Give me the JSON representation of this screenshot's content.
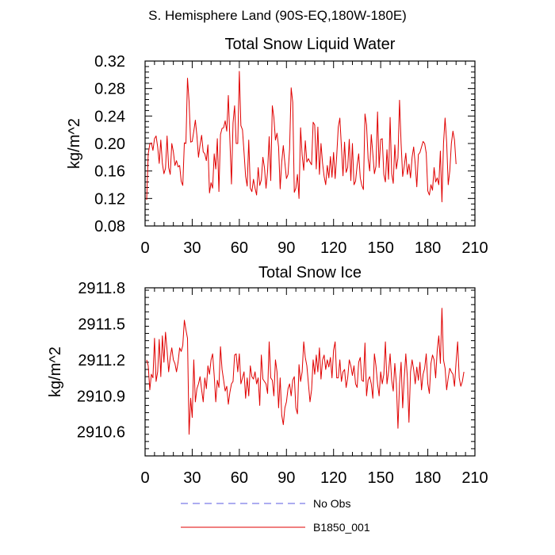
{
  "suptitle": "S. Hemisphere Land (90S-EQ,180W-180E)",
  "legend": [
    {
      "label": "No Obs",
      "style": "dashed",
      "color": "#5a5ae0"
    },
    {
      "label": "B1850_001",
      "style": "solid",
      "color": "#e00000"
    }
  ],
  "chart_data": [
    {
      "type": "line",
      "title": "Total Snow Liquid Water",
      "xlabel": "",
      "ylabel": "kg/m^2",
      "xlim": [
        0,
        210
      ],
      "ylim": [
        0.08,
        0.32
      ],
      "xticks": [
        "0",
        "30",
        "60",
        "90",
        "120",
        "150",
        "180",
        "210"
      ],
      "xtick_values": [
        0,
        30,
        60,
        90,
        120,
        150,
        180,
        210
      ],
      "yticks": [
        "0.08",
        "0.12",
        "0.16",
        "0.20",
        "0.24",
        "0.28",
        "0.32"
      ],
      "ytick_values": [
        0.08,
        0.12,
        0.16,
        0.2,
        0.24,
        0.28,
        0.32
      ],
      "series": [
        {
          "name": "B1850_001",
          "color": "#e00000",
          "values": [
            0.118,
            0.185,
            0.199,
            0.201,
            0.19,
            0.207,
            0.211,
            0.195,
            0.171,
            0.205,
            0.171,
            0.156,
            0.164,
            0.211,
            0.165,
            0.155,
            0.2,
            0.188,
            0.168,
            0.175,
            0.166,
            0.168,
            0.145,
            0.139,
            0.201,
            0.2,
            0.295,
            0.261,
            0.202,
            0.203,
            0.218,
            0.234,
            0.211,
            0.18,
            0.198,
            0.212,
            0.188,
            0.185,
            0.175,
            0.198,
            0.128,
            0.143,
            0.135,
            0.185,
            0.163,
            0.207,
            0.13,
            0.213,
            0.222,
            0.223,
            0.233,
            0.218,
            0.27,
            0.205,
            0.141,
            0.23,
            0.255,
            0.2,
            0.2,
            0.305,
            0.226,
            0.22,
            0.187,
            0.152,
            0.138,
            0.205,
            0.135,
            0.13,
            0.148,
            0.135,
            0.125,
            0.165,
            0.139,
            0.147,
            0.18,
            0.165,
            0.135,
            0.16,
            0.21,
            0.146,
            0.255,
            0.238,
            0.205,
            0.215,
            0.195,
            0.134,
            0.173,
            0.197,
            0.172,
            0.149,
            0.155,
            0.192,
            0.281,
            0.26,
            0.129,
            0.135,
            0.155,
            0.12,
            0.223,
            0.183,
            0.161,
            0.204,
            0.173,
            0.178,
            0.173,
            0.169,
            0.231,
            0.227,
            0.163,
            0.224,
            0.155,
            0.2,
            0.171,
            0.152,
            0.14,
            0.168,
            0.15,
            0.181,
            0.151,
            0.187,
            0.149,
            0.182,
            0.224,
            0.237,
            0.195,
            0.153,
            0.202,
            0.158,
            0.165,
            0.206,
            0.146,
            0.2,
            0.14,
            0.145,
            0.168,
            0.185,
            0.15,
            0.139,
            0.133,
            0.243,
            0.227,
            0.178,
            0.16,
            0.213,
            0.185,
            0.156,
            0.167,
            0.246,
            0.165,
            0.206,
            0.207,
            0.155,
            0.144,
            0.191,
            0.148,
            0.238,
            0.156,
            0.142,
            0.198,
            0.163,
            0.179,
            0.263,
            0.2,
            0.152,
            0.167,
            0.186,
            0.155,
            0.17,
            0.15,
            0.18,
            0.195,
            0.17,
            0.137,
            0.184,
            0.187,
            0.195,
            0.203,
            0.2,
            0.186,
            0.131,
            0.125,
            0.14,
            0.132,
            0.165,
            0.144,
            0.15,
            0.14,
            0.189,
            0.115,
            0.2,
            0.237,
            0.202,
            0.14,
            0.16,
            0.2,
            0.218,
            0.205,
            0.17
          ]
        }
      ]
    },
    {
      "type": "line",
      "title": "Total Snow Ice",
      "xlabel": "",
      "ylabel": "kg/m^2",
      "xlim": [
        0,
        210
      ],
      "ylim": [
        2910.4,
        2911.8
      ],
      "xticks": [
        "0",
        "30",
        "60",
        "90",
        "120",
        "150",
        "180",
        "210"
      ],
      "xtick_values": [
        0,
        30,
        60,
        90,
        120,
        150,
        180,
        210
      ],
      "yticks": [
        "2910.6",
        "2910.9",
        "2911.2",
        "2911.5",
        "2911.8"
      ],
      "ytick_values": [
        2910.6,
        2910.9,
        2911.2,
        2911.5,
        2911.8
      ],
      "series": [
        {
          "name": "B1850_001",
          "color": "#e00000",
          "values": [
            2911.2,
            2911.15,
            2910.95,
            2911.08,
            2911.05,
            2911.38,
            2911.02,
            2911.1,
            2911.37,
            2911.06,
            2911.4,
            2911.18,
            2911.43,
            2911.28,
            2911.1,
            2911.22,
            2911.3,
            2911.2,
            2911.17,
            2911.1,
            2911.18,
            2911.3,
            2911.27,
            2911.32,
            2911.53,
            2911.45,
            2911.38,
            2910.58,
            2910.88,
            2910.72,
            2911.2,
            2910.85,
            2910.96,
            2911.0,
            2911.06,
            2910.95,
            2910.85,
            2911.05,
            2910.96,
            2911.15,
            2911.08,
            2911.2,
            2911.25,
            2911.07,
            2910.85,
            2911.03,
            2910.97,
            2911.31,
            2911.12,
            2911.03,
            2910.94,
            2910.98,
            2910.83,
            2910.93,
            2911.0,
            2911.02,
            2911.24,
            2911.25,
            2911.1,
            2911.25,
            2911.0,
            2911.05,
            2911.1,
            2910.88,
            2911.05,
            2910.9,
            2911.15,
            2911.06,
            2911.04,
            2911.1,
            2911.0,
            2911.05,
            2910.82,
            2911.24,
            2911.04,
            2911.02,
            2911.0,
            2910.92,
            2911.35,
            2911.05,
            2911.03,
            2910.9,
            2911.2,
            2911.1,
            2910.8,
            2911.05,
            2910.74,
            2910.66,
            2910.8,
            2910.85,
            2910.96,
            2911.0,
            2910.9,
            2911.03,
            2911.06,
            2910.8,
            2910.75,
            2911.16,
            2911.02,
            2911.1,
            2911.35,
            2911.22,
            2911.15,
            2911.0,
            2910.85,
            2910.95,
            2911.2,
            2911.08,
            2911.24,
            2911.1,
            2911.3,
            2911.04,
            2911.2,
            2911.24,
            2911.12,
            2911.2,
            2911.14,
            2911.22,
            2911.05,
            2911.28,
            2911.35,
            2911.05,
            2911.05,
            2911.2,
            2911.02,
            2911.1,
            2911.12,
            2910.97,
            2911.05,
            2911.2,
            2911.15,
            2911.07,
            2911.15,
            2911.0,
            2910.97,
            2911.18,
            2911.22,
            2911.03,
            2911.02,
            2911.34,
            2910.9,
            2911.03,
            2911.06,
            2911.0,
            2910.88,
            2911.25,
            2911.15,
            2911.0,
            2910.9,
            2911.1,
            2911.0,
            2911.08,
            2911.35,
            2911.0,
            2911.1,
            2911.25,
            2911.03,
            2910.94,
            2911.17,
            2911.0,
            2910.63,
            2911.0,
            2911.18,
            2910.8,
            2911.05,
            2911.25,
            2911.05,
            2910.68,
            2911.1,
            2911.2,
            2911.12,
            2911.0,
            2911.14,
            2911.03,
            2911.18,
            2910.95,
            2911.08,
            2911.13,
            2911.25,
            2911.0,
            2910.92,
            2911.17,
            2911.24,
            2911.2,
            2911.05,
            2911.28,
            2911.4,
            2911.17,
            2911.63,
            2911.2,
            2911.13,
            2910.95,
            2911.05,
            2911.13,
            2911.1,
            2911.08,
            2910.98,
            2911.18,
            2911.35,
            2911.05,
            2910.98,
            2911.02,
            2911.1
          ]
        }
      ]
    }
  ]
}
